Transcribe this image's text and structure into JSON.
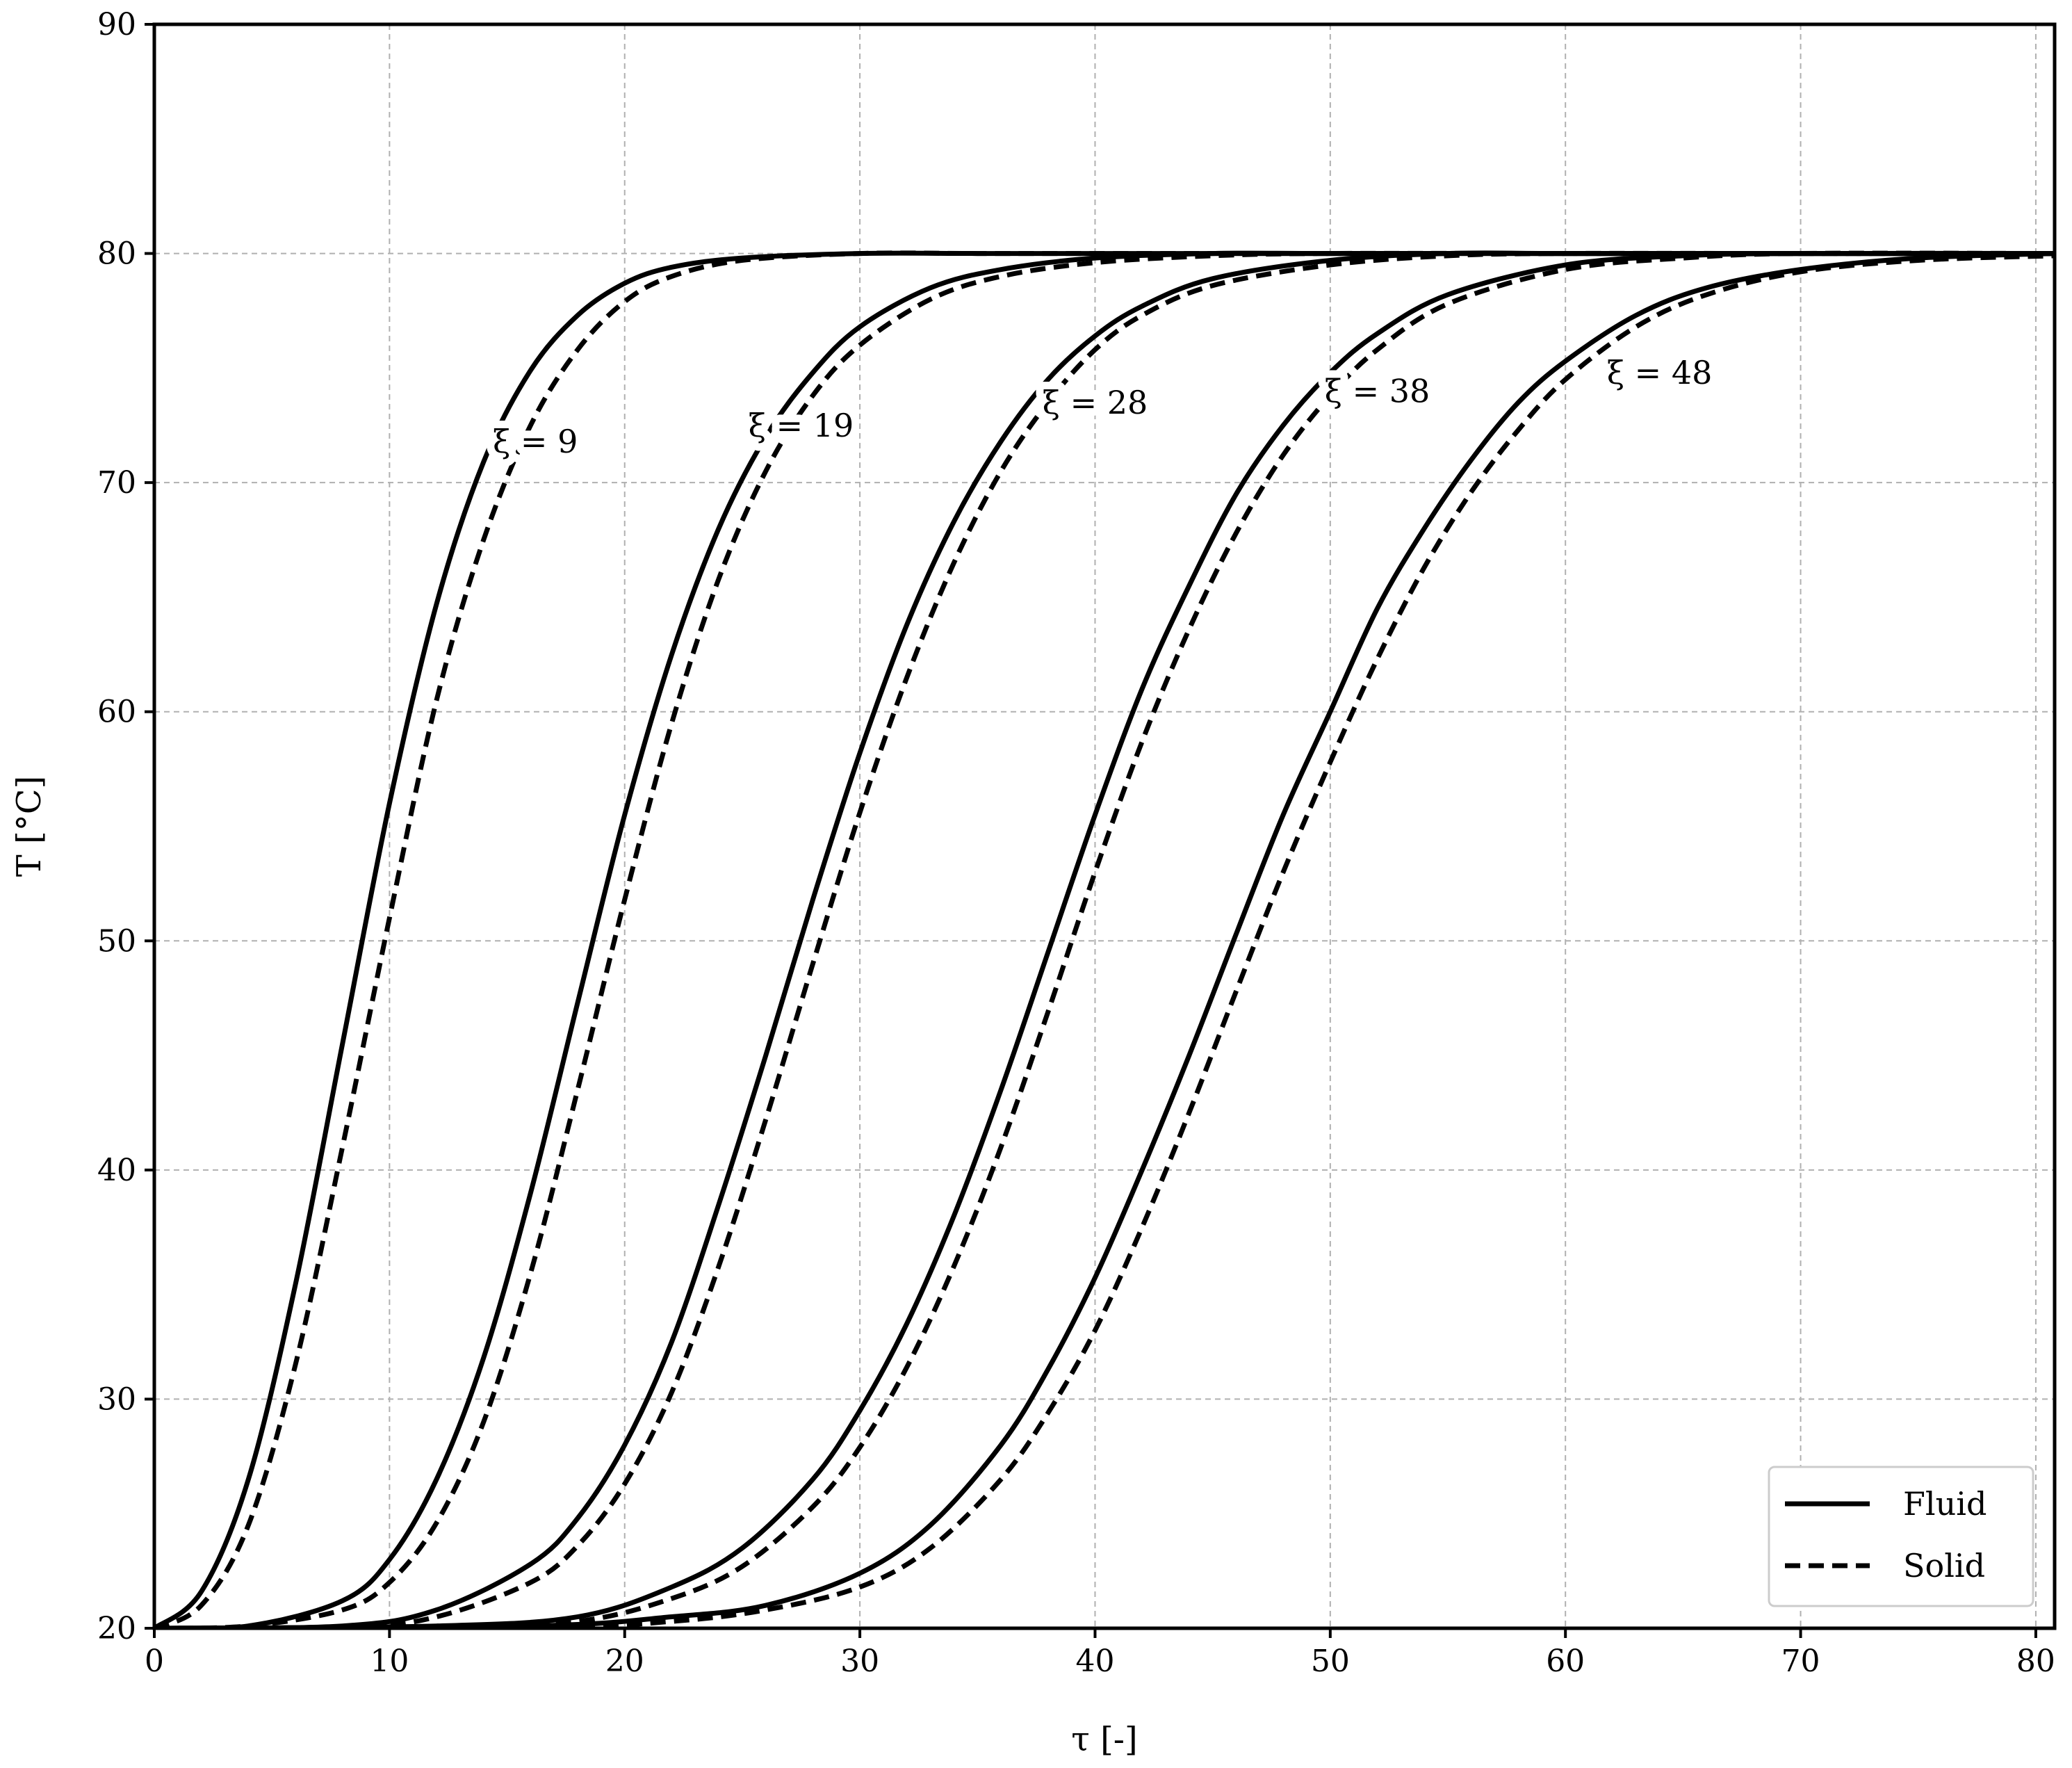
{
  "chart_data": {
    "type": "line",
    "xlabel": "τ [-]",
    "ylabel": "T [°C]",
    "xlim": [
      0,
      80.8
    ],
    "ylim": [
      20,
      90
    ],
    "xticks": [
      0,
      10,
      20,
      30,
      40,
      50,
      60,
      70,
      80
    ],
    "yticks": [
      20,
      30,
      40,
      50,
      60,
      70,
      80,
      90
    ],
    "x_tick_labels": [
      "0",
      "10",
      "20",
      "30",
      "40",
      "50",
      "60",
      "70",
      "80"
    ],
    "y_tick_labels": [
      "20",
      "30",
      "40",
      "50",
      "60",
      "70",
      "80",
      "90"
    ],
    "grid": true,
    "legend": {
      "placement": "lower-right",
      "entries": [
        {
          "label": "Fluid",
          "style": "solid"
        },
        {
          "label": "Solid",
          "style": "dashed"
        }
      ]
    },
    "T_initial": 20,
    "T_final": 80,
    "series": [
      {
        "name": "Fluid",
        "style": "solid",
        "curve_label": "ξ = 9",
        "xi": 9,
        "label_at": [
          16.2,
          71.8
        ],
        "x": [
          0,
          2,
          4,
          6,
          8,
          10,
          12,
          14,
          16,
          18,
          20,
          22,
          25,
          30,
          35,
          40,
          50,
          60,
          80.8
        ],
        "y": [
          20.0,
          21.6,
          26.5,
          35.0,
          45.5,
          56.0,
          64.7,
          70.9,
          74.9,
          77.3,
          78.7,
          79.4,
          79.8,
          80.0,
          80.0,
          80.0,
          80.0,
          80.0,
          80.0
        ]
      },
      {
        "name": "Solid",
        "style": "dashed",
        "curve_label": "",
        "xi": 9,
        "x": [
          0,
          2,
          4,
          6,
          8,
          10,
          12,
          14,
          16,
          18,
          20,
          22,
          25,
          30,
          35,
          40,
          50,
          60,
          80.8
        ],
        "y": [
          20.0,
          21.0,
          24.5,
          31.5,
          41.0,
          51.0,
          60.5,
          67.5,
          72.5,
          75.8,
          77.9,
          79.0,
          79.7,
          80.0,
          80.0,
          80.0,
          80.0,
          80.0,
          80.0
        ]
      },
      {
        "name": "Fluid",
        "style": "solid",
        "curve_label": "ξ = 19",
        "xi": 19,
        "label_at": [
          27.5,
          72.5
        ],
        "x": [
          0,
          4,
          8,
          10,
          12,
          14,
          16,
          18,
          20,
          22,
          24,
          26,
          28,
          30,
          33,
          36,
          40,
          45,
          50,
          60,
          80.8
        ],
        "y": [
          20.0,
          20.1,
          21.2,
          23.0,
          26.5,
          31.8,
          39.0,
          47.3,
          55.5,
          62.5,
          68.0,
          72.0,
          74.8,
          76.8,
          78.5,
          79.3,
          79.8,
          80.0,
          80.0,
          80.0,
          80.0
        ]
      },
      {
        "name": "Solid",
        "style": "dashed",
        "curve_label": "",
        "xi": 19,
        "x": [
          0,
          4,
          8,
          10,
          12,
          14,
          16,
          18,
          20,
          22,
          24,
          26,
          28,
          30,
          33,
          36,
          40,
          45,
          50,
          60,
          80.8
        ],
        "y": [
          20.0,
          20.1,
          20.8,
          22.0,
          24.6,
          29.0,
          35.5,
          43.5,
          51.8,
          59.5,
          65.8,
          70.5,
          73.8,
          76.0,
          78.0,
          79.0,
          79.6,
          79.9,
          80.0,
          80.0,
          80.0
        ]
      },
      {
        "name": "Fluid",
        "style": "solid",
        "curve_label": "ξ = 28",
        "xi": 28,
        "label_at": [
          40.0,
          73.5
        ],
        "x": [
          0,
          8,
          12,
          16,
          18,
          20,
          22,
          24,
          26,
          28,
          30,
          32,
          34,
          36,
          38,
          40,
          42,
          45,
          50,
          55,
          60,
          70,
          80.8
        ],
        "y": [
          20.0,
          20.1,
          20.8,
          22.8,
          24.8,
          28.0,
          32.5,
          38.5,
          45.0,
          51.8,
          58.2,
          63.8,
          68.3,
          71.8,
          74.5,
          76.4,
          77.7,
          78.9,
          79.7,
          80.0,
          80.0,
          80.0,
          80.0
        ]
      },
      {
        "name": "Solid",
        "style": "dashed",
        "curve_label": "",
        "xi": 28,
        "x": [
          0,
          8,
          12,
          16,
          18,
          20,
          22,
          24,
          26,
          28,
          30,
          32,
          34,
          36,
          38,
          40,
          42,
          45,
          50,
          55,
          60,
          70,
          80.8
        ],
        "y": [
          20.0,
          20.0,
          20.5,
          22.0,
          23.6,
          26.3,
          30.3,
          35.8,
          42.2,
          49.0,
          55.6,
          61.5,
          66.5,
          70.5,
          73.5,
          75.8,
          77.3,
          78.6,
          79.5,
          79.9,
          80.0,
          80.0,
          80.0
        ]
      },
      {
        "name": "Fluid",
        "style": "solid",
        "curve_label": "ξ = 38",
        "xi": 38,
        "label_at": [
          52.0,
          74.0
        ],
        "x": [
          0,
          12,
          18,
          22,
          25,
          28,
          30,
          32,
          34,
          36,
          38,
          40,
          42,
          44,
          46,
          48,
          50,
          52,
          55,
          60,
          65,
          70,
          80.8
        ],
        "y": [
          20.0,
          20.1,
          20.5,
          21.8,
          23.5,
          26.5,
          29.5,
          33.3,
          38.0,
          43.5,
          49.5,
          55.5,
          61.0,
          65.5,
          69.5,
          72.5,
          74.8,
          76.5,
          78.2,
          79.5,
          79.9,
          80.0,
          80.0
        ]
      },
      {
        "name": "Solid",
        "style": "dashed",
        "curve_label": "",
        "xi": 38,
        "x": [
          0,
          12,
          18,
          22,
          25,
          28,
          30,
          32,
          34,
          36,
          38,
          40,
          42,
          44,
          46,
          48,
          50,
          52,
          55,
          60,
          65,
          70,
          80.8
        ],
        "y": [
          20.0,
          20.0,
          20.3,
          21.3,
          22.7,
          25.3,
          27.9,
          31.4,
          35.8,
          41.0,
          46.9,
          53.0,
          58.7,
          63.6,
          67.8,
          71.2,
          73.8,
          75.8,
          77.8,
          79.3,
          79.8,
          80.0,
          80.0
        ]
      },
      {
        "name": "Fluid",
        "style": "solid",
        "curve_label": "ξ = 48",
        "xi": 48,
        "label_at": [
          64.0,
          74.8
        ],
        "x": [
          0,
          16,
          22,
          26,
          30,
          33,
          36,
          38,
          40,
          42,
          44,
          46,
          48,
          50,
          52,
          54,
          56,
          58,
          60,
          63,
          66,
          70,
          75,
          80.8
        ],
        "y": [
          20.0,
          20.1,
          20.5,
          21.0,
          22.4,
          24.5,
          28.0,
          31.3,
          35.3,
          40.0,
          45.0,
          50.3,
          55.5,
          60.0,
          64.5,
          68.0,
          71.0,
          73.5,
          75.3,
          77.3,
          78.5,
          79.3,
          79.8,
          80.0
        ]
      },
      {
        "name": "Solid",
        "style": "dashed",
        "curve_label": "",
        "xi": 48,
        "x": [
          0,
          16,
          22,
          26,
          30,
          33,
          36,
          38,
          40,
          42,
          44,
          46,
          48,
          50,
          52,
          54,
          56,
          58,
          60,
          63,
          66,
          70,
          75,
          80.8
        ],
        "y": [
          20.0,
          20.0,
          20.3,
          20.8,
          21.8,
          23.5,
          26.5,
          29.4,
          33.0,
          37.5,
          42.5,
          47.8,
          53.0,
          57.8,
          62.3,
          66.3,
          69.6,
          72.3,
          74.5,
          76.8,
          78.2,
          79.2,
          79.7,
          79.9
        ]
      }
    ]
  }
}
